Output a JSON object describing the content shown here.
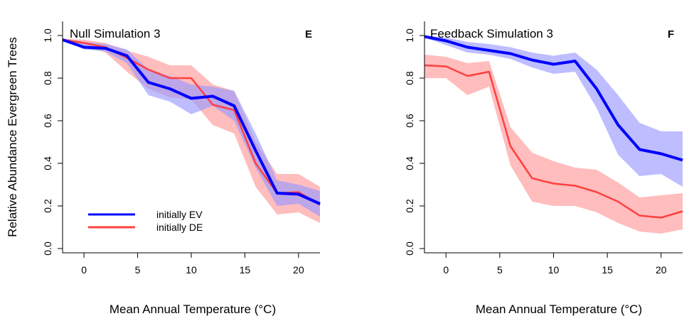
{
  "colors": {
    "ev_line": "#0000ff",
    "de_line": "#ff4040",
    "ev_band": "#9999ff",
    "de_band": "#ff9999"
  },
  "ylabel": "Relative Abundance Evergreen Trees",
  "chart_data": [
    {
      "type": "line",
      "title": "Null Simulation 3",
      "panel_letter": "E",
      "xlabel": "Mean Annual Temperature (°C)",
      "ylabel": "Relative Abundance Evergreen Trees",
      "xlim": [
        -2,
        22
      ],
      "ylim": [
        0,
        1
      ],
      "x_ticks": [
        0,
        5,
        10,
        15,
        20
      ],
      "y_ticks": [
        0.0,
        0.2,
        0.4,
        0.6,
        0.8,
        1.0
      ],
      "grid": false,
      "legend": {
        "placement": "bottom-left",
        "entries": [
          "initially EV",
          "initially DE"
        ]
      },
      "x": [
        -2,
        0,
        2,
        4,
        6,
        8,
        10,
        12,
        14,
        16,
        18,
        20,
        22
      ],
      "series": [
        {
          "name": "initially EV",
          "color": "#0000ff",
          "values": [
            0.98,
            0.945,
            0.94,
            0.905,
            0.78,
            0.75,
            0.705,
            0.715,
            0.67,
            0.46,
            0.26,
            0.255,
            0.21
          ],
          "lower": [
            0.98,
            0.935,
            0.925,
            0.87,
            0.72,
            0.69,
            0.63,
            0.67,
            0.6,
            0.38,
            0.2,
            0.21,
            0.15
          ],
          "upper": [
            0.985,
            0.97,
            0.96,
            0.935,
            0.84,
            0.81,
            0.77,
            0.76,
            0.74,
            0.54,
            0.32,
            0.3,
            0.27
          ]
        },
        {
          "name": "initially DE",
          "color": "#ff4040",
          "values": [
            0.98,
            0.965,
            0.945,
            0.895,
            0.84,
            0.8,
            0.8,
            0.675,
            0.65,
            0.4,
            0.26,
            0.265,
            0.205
          ],
          "lower": [
            0.98,
            0.955,
            0.92,
            0.83,
            0.75,
            0.71,
            0.7,
            0.58,
            0.54,
            0.29,
            0.16,
            0.17,
            0.12
          ],
          "upper": [
            0.985,
            0.98,
            0.965,
            0.93,
            0.9,
            0.86,
            0.86,
            0.77,
            0.74,
            0.5,
            0.35,
            0.35,
            0.29
          ]
        }
      ]
    },
    {
      "type": "line",
      "title": "Feedback Simulation 3",
      "panel_letter": "F",
      "xlabel": "Mean Annual Temperature (°C)",
      "xlim": [
        -2,
        22
      ],
      "ylim": [
        0,
        1
      ],
      "x_ticks": [
        0,
        5,
        10,
        15,
        20
      ],
      "y_ticks": [
        0.0,
        0.2,
        0.4,
        0.6,
        0.8,
        1.0
      ],
      "grid": false,
      "x": [
        -2,
        0,
        2,
        4,
        6,
        8,
        10,
        12,
        14,
        16,
        18,
        20,
        22
      ],
      "series": [
        {
          "name": "initially EV",
          "color": "#0000ff",
          "values": [
            0.995,
            0.975,
            0.945,
            0.93,
            0.915,
            0.885,
            0.865,
            0.88,
            0.75,
            0.58,
            0.465,
            0.445,
            0.415
          ],
          "lower": [
            0.99,
            0.955,
            0.92,
            0.91,
            0.89,
            0.85,
            0.82,
            0.83,
            0.66,
            0.44,
            0.34,
            0.35,
            0.29
          ],
          "upper": [
            1.0,
            0.99,
            0.97,
            0.96,
            0.945,
            0.92,
            0.905,
            0.92,
            0.84,
            0.72,
            0.59,
            0.55,
            0.55
          ]
        },
        {
          "name": "initially DE",
          "color": "#ff4040",
          "values": [
            0.86,
            0.855,
            0.81,
            0.83,
            0.48,
            0.33,
            0.305,
            0.295,
            0.265,
            0.22,
            0.155,
            0.145,
            0.175
          ],
          "lower": [
            0.8,
            0.8,
            0.72,
            0.76,
            0.39,
            0.22,
            0.2,
            0.2,
            0.17,
            0.12,
            0.08,
            0.07,
            0.09
          ],
          "upper": [
            0.91,
            0.9,
            0.87,
            0.88,
            0.57,
            0.45,
            0.41,
            0.38,
            0.37,
            0.31,
            0.24,
            0.25,
            0.26
          ]
        }
      ]
    }
  ]
}
